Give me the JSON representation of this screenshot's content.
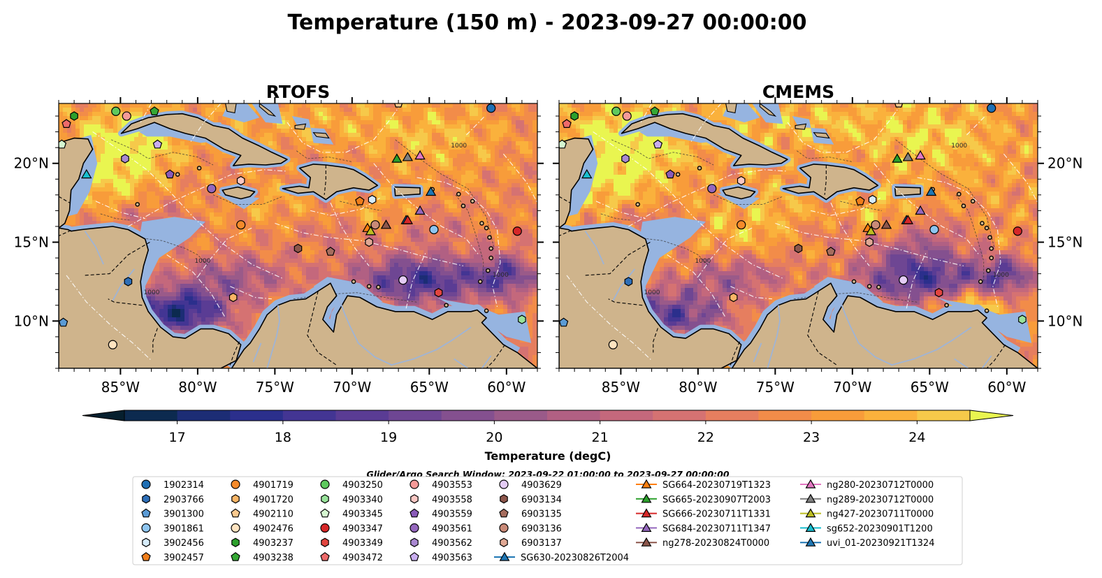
{
  "title": "Temperature (150 m) - 2023-09-27 00:00:00",
  "panels": [
    {
      "title": "RTOFS",
      "variant": 0
    },
    {
      "title": "CMEMS",
      "variant": 1
    }
  ],
  "lon_labels": [
    "85°W",
    "80°W",
    "75°W",
    "70°W",
    "65°W",
    "60°W"
  ],
  "lat_labels": [
    "20°N",
    "15°N",
    "10°N"
  ],
  "extent": {
    "lon": [
      -89,
      -58
    ],
    "lat": [
      7,
      23.8
    ]
  },
  "colorbar": {
    "label": "Temperature (degC)",
    "ticks": [
      "17",
      "18",
      "19",
      "20",
      "21",
      "22",
      "23",
      "24"
    ],
    "range": [
      16.5,
      24.5
    ],
    "colors": [
      "#061f2e",
      "#0c2a4f",
      "#1c2d75",
      "#2b2f8c",
      "#433593",
      "#5a3c94",
      "#6e4693",
      "#84508f",
      "#9a5a89",
      "#b16083",
      "#c4687c",
      "#d57272",
      "#e67e5f",
      "#f28c49",
      "#f89c3a",
      "#fab13c",
      "#f6c94a",
      "#e9f550"
    ]
  },
  "search_window": "Glider/Argo Search Window: 2023-09-22 01:00:00 to 2023-09-27 00:00:00",
  "map_labels": [
    "1000",
    "1000",
    "1000",
    "1000"
  ],
  "colors": {
    "ocean_shelf": "#96b4e0",
    "land": "#cfb48c",
    "coast": "#000000",
    "grid": "#ffffff"
  },
  "legend": [
    {
      "label": "1902314",
      "marker": "circle",
      "color": "#1f6fb4"
    },
    {
      "label": "2903766",
      "marker": "hexagon",
      "color": "#2e6fb8"
    },
    {
      "label": "3901300",
      "marker": "pentagon",
      "color": "#5b9bd5"
    },
    {
      "label": "3901861",
      "marker": "circle",
      "color": "#8ec5f0"
    },
    {
      "label": "3902456",
      "marker": "hexagon",
      "color": "#d6ecfb"
    },
    {
      "label": "3902457",
      "marker": "pentagon",
      "color": "#f07e1b"
    },
    {
      "label": "4901719",
      "marker": "circle",
      "color": "#f58a2a"
    },
    {
      "label": "4901720",
      "marker": "hexagon",
      "color": "#f9b566"
    },
    {
      "label": "4902110",
      "marker": "pentagon",
      "color": "#fbc98e"
    },
    {
      "label": "4902476",
      "marker": "circle",
      "color": "#fde3c0"
    },
    {
      "label": "4903237",
      "marker": "hexagon",
      "color": "#2ca02c"
    },
    {
      "label": "4903238",
      "marker": "pentagon",
      "color": "#35a835"
    },
    {
      "label": "4903250",
      "marker": "circle",
      "color": "#5ec95e"
    },
    {
      "label": "4903340",
      "marker": "hexagon",
      "color": "#98e39a"
    },
    {
      "label": "4903345",
      "marker": "pentagon",
      "color": "#d5f7d0"
    },
    {
      "label": "4903347",
      "marker": "circle",
      "color": "#d62728"
    },
    {
      "label": "4903349",
      "marker": "hexagon",
      "color": "#e2453f"
    },
    {
      "label": "4903472",
      "marker": "pentagon",
      "color": "#ee6a6a"
    },
    {
      "label": "4903553",
      "marker": "circle",
      "color": "#f59a98"
    },
    {
      "label": "4903558",
      "marker": "hexagon",
      "color": "#fbc7c3"
    },
    {
      "label": "4903559",
      "marker": "pentagon",
      "color": "#8a5bb8"
    },
    {
      "label": "4903561",
      "marker": "circle",
      "color": "#9467bd"
    },
    {
      "label": "4903562",
      "marker": "hexagon",
      "color": "#a988d1"
    },
    {
      "label": "4903563",
      "marker": "pentagon",
      "color": "#c9aef0"
    },
    {
      "label": "4903629",
      "marker": "circle",
      "color": "#e4ccf5"
    },
    {
      "label": "6903134",
      "marker": "hexagon",
      "color": "#8c564b"
    },
    {
      "label": "6903135",
      "marker": "pentagon",
      "color": "#a66d5e"
    },
    {
      "label": "6903136",
      "marker": "circle",
      "color": "#c98a78"
    },
    {
      "label": "6903137",
      "marker": "hexagon",
      "color": "#e0a894"
    },
    {
      "label": "SG630-20230826T2004",
      "marker": "triangle-line",
      "color": "#1f77b4"
    },
    {
      "label": "SG664-20230719T1323",
      "marker": "triangle-line",
      "color": "#ff7f0e"
    },
    {
      "label": "SG665-20230907T2003",
      "marker": "triangle-line",
      "color": "#2ca02c"
    },
    {
      "label": "SG666-20230711T1331",
      "marker": "triangle-line",
      "color": "#d62728"
    },
    {
      "label": "SG684-20230711T1347",
      "marker": "triangle-line",
      "color": "#9467bd"
    },
    {
      "label": "ng278-20230824T0000",
      "marker": "triangle-line",
      "color": "#8c564b"
    },
    {
      "label": "ng280-20230712T0000",
      "marker": "triangle-line",
      "color": "#e377c2"
    },
    {
      "label": "ng289-20230712T0000",
      "marker": "triangle-line",
      "color": "#7f7f7f"
    },
    {
      "label": "ng427-20230711T0000",
      "marker": "triangle-line",
      "color": "#bcbd22"
    },
    {
      "label": "sg652-20230901T1200",
      "marker": "triangle-line",
      "color": "#17becf"
    },
    {
      "label": "uvi_01-20230921T1324",
      "marker": "triangle-line",
      "color": "#1f77b4"
    }
  ],
  "floats": [
    {
      "id": "1902314",
      "lon": -61.0,
      "lat": 23.5
    },
    {
      "id": "2903766",
      "lon": -84.5,
      "lat": 12.5
    },
    {
      "id": "3901300",
      "lon": -88.7,
      "lat": 9.9
    },
    {
      "id": "3901861",
      "lon": -64.7,
      "lat": 15.8
    },
    {
      "id": "3902456",
      "lon": -68.7,
      "lat": 17.7
    },
    {
      "id": "3902457",
      "lon": -69.5,
      "lat": 17.6
    },
    {
      "id": "4901719",
      "lon": -77.2,
      "lat": 16.1
    },
    {
      "id": "4901720",
      "lon": -77.7,
      "lat": 11.5
    },
    {
      "id": "4902110",
      "lon": -67.0,
      "lat": 23.8
    },
    {
      "id": "4902476",
      "lon": -85.5,
      "lat": 8.5
    },
    {
      "id": "4903237",
      "lon": -88.0,
      "lat": 23.0
    },
    {
      "id": "4903238",
      "lon": -82.8,
      "lat": 23.3
    },
    {
      "id": "4903250",
      "lon": -85.3,
      "lat": 23.3
    },
    {
      "id": "4903340",
      "lon": -59.0,
      "lat": 10.1
    },
    {
      "id": "4903345",
      "lon": -88.8,
      "lat": 21.2
    },
    {
      "id": "4903347",
      "lon": -59.3,
      "lat": 15.7
    },
    {
      "id": "4903349",
      "lon": -64.4,
      "lat": 11.8
    },
    {
      "id": "4903472",
      "lon": -88.5,
      "lat": 22.5
    },
    {
      "id": "4903553",
      "lon": -84.6,
      "lat": 23.0
    },
    {
      "id": "4903558",
      "lon": -77.2,
      "lat": 18.9
    },
    {
      "id": "4903559",
      "lon": -81.8,
      "lat": 19.3
    },
    {
      "id": "4903561",
      "lon": -79.1,
      "lat": 18.4
    },
    {
      "id": "4903562",
      "lon": -84.7,
      "lat": 20.3
    },
    {
      "id": "4903563",
      "lon": -82.6,
      "lat": 21.2
    },
    {
      "id": "4903629",
      "lon": -66.7,
      "lat": 12.6
    },
    {
      "id": "6903134",
      "lon": -73.5,
      "lat": 14.6
    },
    {
      "id": "6903135",
      "lon": -71.4,
      "lat": 14.4
    },
    {
      "id": "6903136",
      "lon": -68.5,
      "lat": 16.1
    },
    {
      "id": "6903137",
      "lon": -68.9,
      "lat": 15.0
    }
  ],
  "gliders": [
    {
      "id": "SG630-20230826T2004",
      "lon": -66.5,
      "lat": 16.4
    },
    {
      "id": "SG664-20230719T1323",
      "lon": -69.0,
      "lat": 15.9
    },
    {
      "id": "SG665-20230907T2003",
      "lon": -67.1,
      "lat": 20.3
    },
    {
      "id": "SG666-20230711T1331",
      "lon": -66.4,
      "lat": 16.4
    },
    {
      "id": "SG684-20230711T1347",
      "lon": -65.6,
      "lat": 17.0
    },
    {
      "id": "ng278-20230824T0000",
      "lon": -67.8,
      "lat": 16.1
    },
    {
      "id": "ng280-20230712T0000",
      "lon": -65.6,
      "lat": 20.5
    },
    {
      "id": "ng289-20230712T0000",
      "lon": -66.4,
      "lat": 20.4
    },
    {
      "id": "ng427-20230711T0000",
      "lon": -68.8,
      "lat": 15.7
    },
    {
      "id": "sg652-20230901T1200",
      "lon": -87.2,
      "lat": 19.3
    },
    {
      "id": "uvi_01-20230921T1324",
      "lon": -64.9,
      "lat": 18.2
    }
  ]
}
